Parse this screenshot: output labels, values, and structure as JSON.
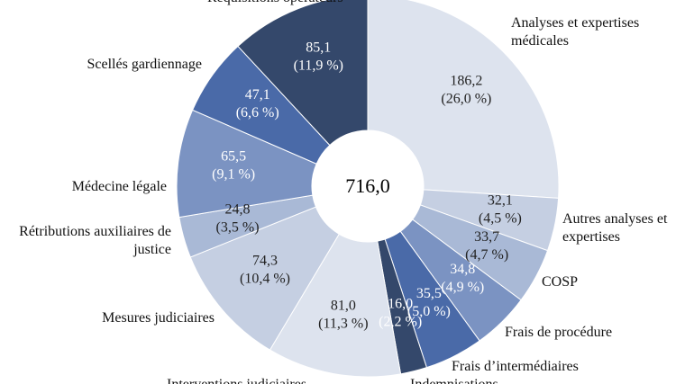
{
  "chart_data": {
    "type": "donut",
    "total_label": "716,0",
    "categories": [
      "Analyses et expertises médicales",
      "Autres analyses et expertises",
      "COSP",
      "Frais de procédure",
      "Frais d’intermédiaires",
      "Indemnisations",
      "Interventions judiciaires",
      "Mesures judiciaires",
      "Rétributions auxiliaires de justice",
      "Médecine légale",
      "Scellés gardiennage",
      "Réquisitions opérateurs"
    ],
    "values": [
      186.2,
      32.1,
      33.7,
      34.8,
      35.5,
      16.0,
      81.0,
      74.3,
      24.8,
      65.5,
      47.1,
      85.1
    ],
    "value_labels": [
      "186,2",
      "32,1",
      "33,7",
      "34,8",
      "35,5",
      "16,0",
      "81,0",
      "74,3",
      "24,8",
      "65,5",
      "47,1",
      "85,1"
    ],
    "percents": [
      26.0,
      4.5,
      4.7,
      4.9,
      5.0,
      2.2,
      11.3,
      10.4,
      3.5,
      9.1,
      6.6,
      11.9
    ],
    "percent_labels": [
      "(26,0 %)",
      "(4,5 %)",
      "(4,7 %)",
      "(4,9 %)",
      "(5,0 %)",
      "(2,2 %)",
      "(11,3 %)",
      "(10,4 %)",
      "(3,5 %)",
      "(9,1 %)",
      "(6,6 %)",
      "(11,9 %)"
    ],
    "colors": [
      "#dde3ee",
      "#c5cfe2",
      "#a9b9d6",
      "#7b93c2",
      "#4a6aa8",
      "#34486b",
      "#dde3ee",
      "#c5cfe2",
      "#a9b9d6",
      "#7b93c2",
      "#4a6aa8",
      "#34486b"
    ]
  }
}
